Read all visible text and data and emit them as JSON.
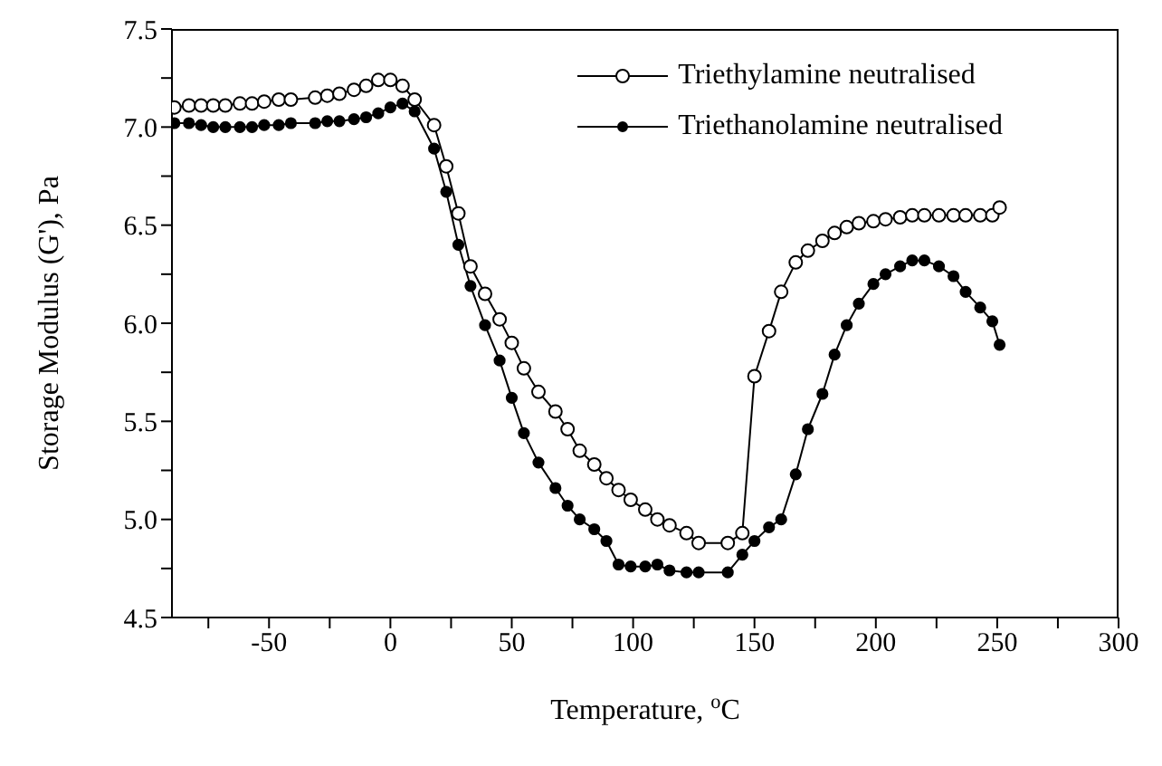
{
  "chart_data": {
    "type": "line",
    "xlabel": "Temperature, $^{o}$C",
    "ylabel": "Storage Modulus (G'), Pa",
    "x": [
      -89,
      -83,
      -78,
      -73,
      -68,
      -62,
      -57,
      -52,
      -46,
      -41,
      -31,
      -26,
      -21,
      -15,
      -10,
      -5,
      0,
      5,
      10,
      18,
      23,
      28,
      33,
      39,
      45,
      50,
      55,
      61,
      68,
      73,
      78,
      84,
      89,
      94,
      99,
      105,
      110,
      115,
      122,
      127,
      139,
      145,
      150,
      156,
      161,
      167,
      172,
      178,
      183,
      188,
      193,
      199,
      204,
      210,
      215,
      220,
      226,
      232,
      237,
      243,
      248,
      251
    ],
    "series": [
      {
        "name": "Triethylamine neutralised",
        "color": "#000000",
        "marker": "circle",
        "values": [
          7.1,
          7.11,
          7.11,
          7.11,
          7.11,
          7.12,
          7.12,
          7.13,
          7.14,
          7.14,
          7.15,
          7.16,
          7.17,
          7.19,
          7.21,
          7.24,
          7.24,
          7.21,
          7.14,
          7.01,
          6.8,
          6.56,
          6.29,
          6.15,
          6.02,
          5.9,
          5.77,
          5.65,
          5.55,
          5.46,
          5.35,
          5.28,
          5.21,
          5.15,
          5.1,
          5.05,
          5.0,
          4.97,
          4.93,
          4.88,
          4.88,
          4.93,
          5.73,
          5.96,
          6.16,
          6.31,
          6.37,
          6.42,
          6.46,
          6.49,
          6.51,
          6.52,
          6.53,
          6.54,
          6.55,
          6.55,
          6.55,
          6.55,
          6.55,
          6.55,
          6.55,
          6.59
        ]
      },
      {
        "name": "Triethanolamine neutralised",
        "color": "#000000",
        "marker": "circle",
        "values": [
          7.02,
          7.02,
          7.01,
          7.0,
          7.0,
          7.0,
          7.0,
          7.01,
          7.01,
          7.02,
          7.02,
          7.03,
          7.03,
          7.04,
          7.05,
          7.07,
          7.1,
          7.12,
          7.08,
          6.89,
          6.67,
          6.4,
          6.19,
          5.99,
          5.81,
          5.62,
          5.44,
          5.29,
          5.16,
          5.07,
          5.0,
          4.95,
          4.89,
          4.77,
          4.76,
          4.76,
          4.77,
          4.74,
          4.73,
          4.73,
          4.73,
          4.82,
          4.89,
          4.96,
          5.0,
          5.23,
          5.46,
          5.64,
          5.84,
          5.99,
          6.1,
          6.2,
          6.25,
          6.29,
          6.32,
          6.32,
          6.29,
          6.24,
          6.16,
          6.08,
          6.01,
          5.89
        ]
      }
    ],
    "xlim": [
      -90,
      300
    ],
    "xticks": [
      {
        "value": -75,
        "label": null
      },
      -50,
      {
        "value": -25,
        "label": null
      },
      0,
      {
        "value": 25,
        "label": null
      },
      50,
      {
        "value": 75,
        "label": null
      },
      100,
      {
        "value": 125,
        "label": null
      },
      150,
      {
        "value": 175,
        "label": null
      },
      200,
      {
        "value": 225,
        "label": null
      },
      250,
      {
        "value": 275,
        "label": null
      },
      300
    ],
    "ylim": [
      4.5,
      7.5
    ],
    "yticks": [
      {
        "value": 4.5,
        "label": "4.5"
      },
      {
        "value": 4.75,
        "label": null
      },
      {
        "value": 5,
        "label": "5.0"
      },
      {
        "value": 5.25,
        "label": null
      },
      {
        "value": 5.5,
        "label": "5.5"
      },
      {
        "value": 5.75,
        "label": null
      },
      {
        "value": 6,
        "label": "6.0"
      },
      {
        "value": 6.25,
        "label": null
      },
      {
        "value": 6.5,
        "label": "6.5"
      },
      {
        "value": 6.75,
        "label": null
      },
      {
        "value": 7,
        "label": "7.0"
      },
      {
        "value": 7.25,
        "label": null
      },
      {
        "value": 7.5,
        "label": "7.5"
      }
    ],
    "legend": "top right",
    "grid": false,
    "line_style": "solid"
  }
}
